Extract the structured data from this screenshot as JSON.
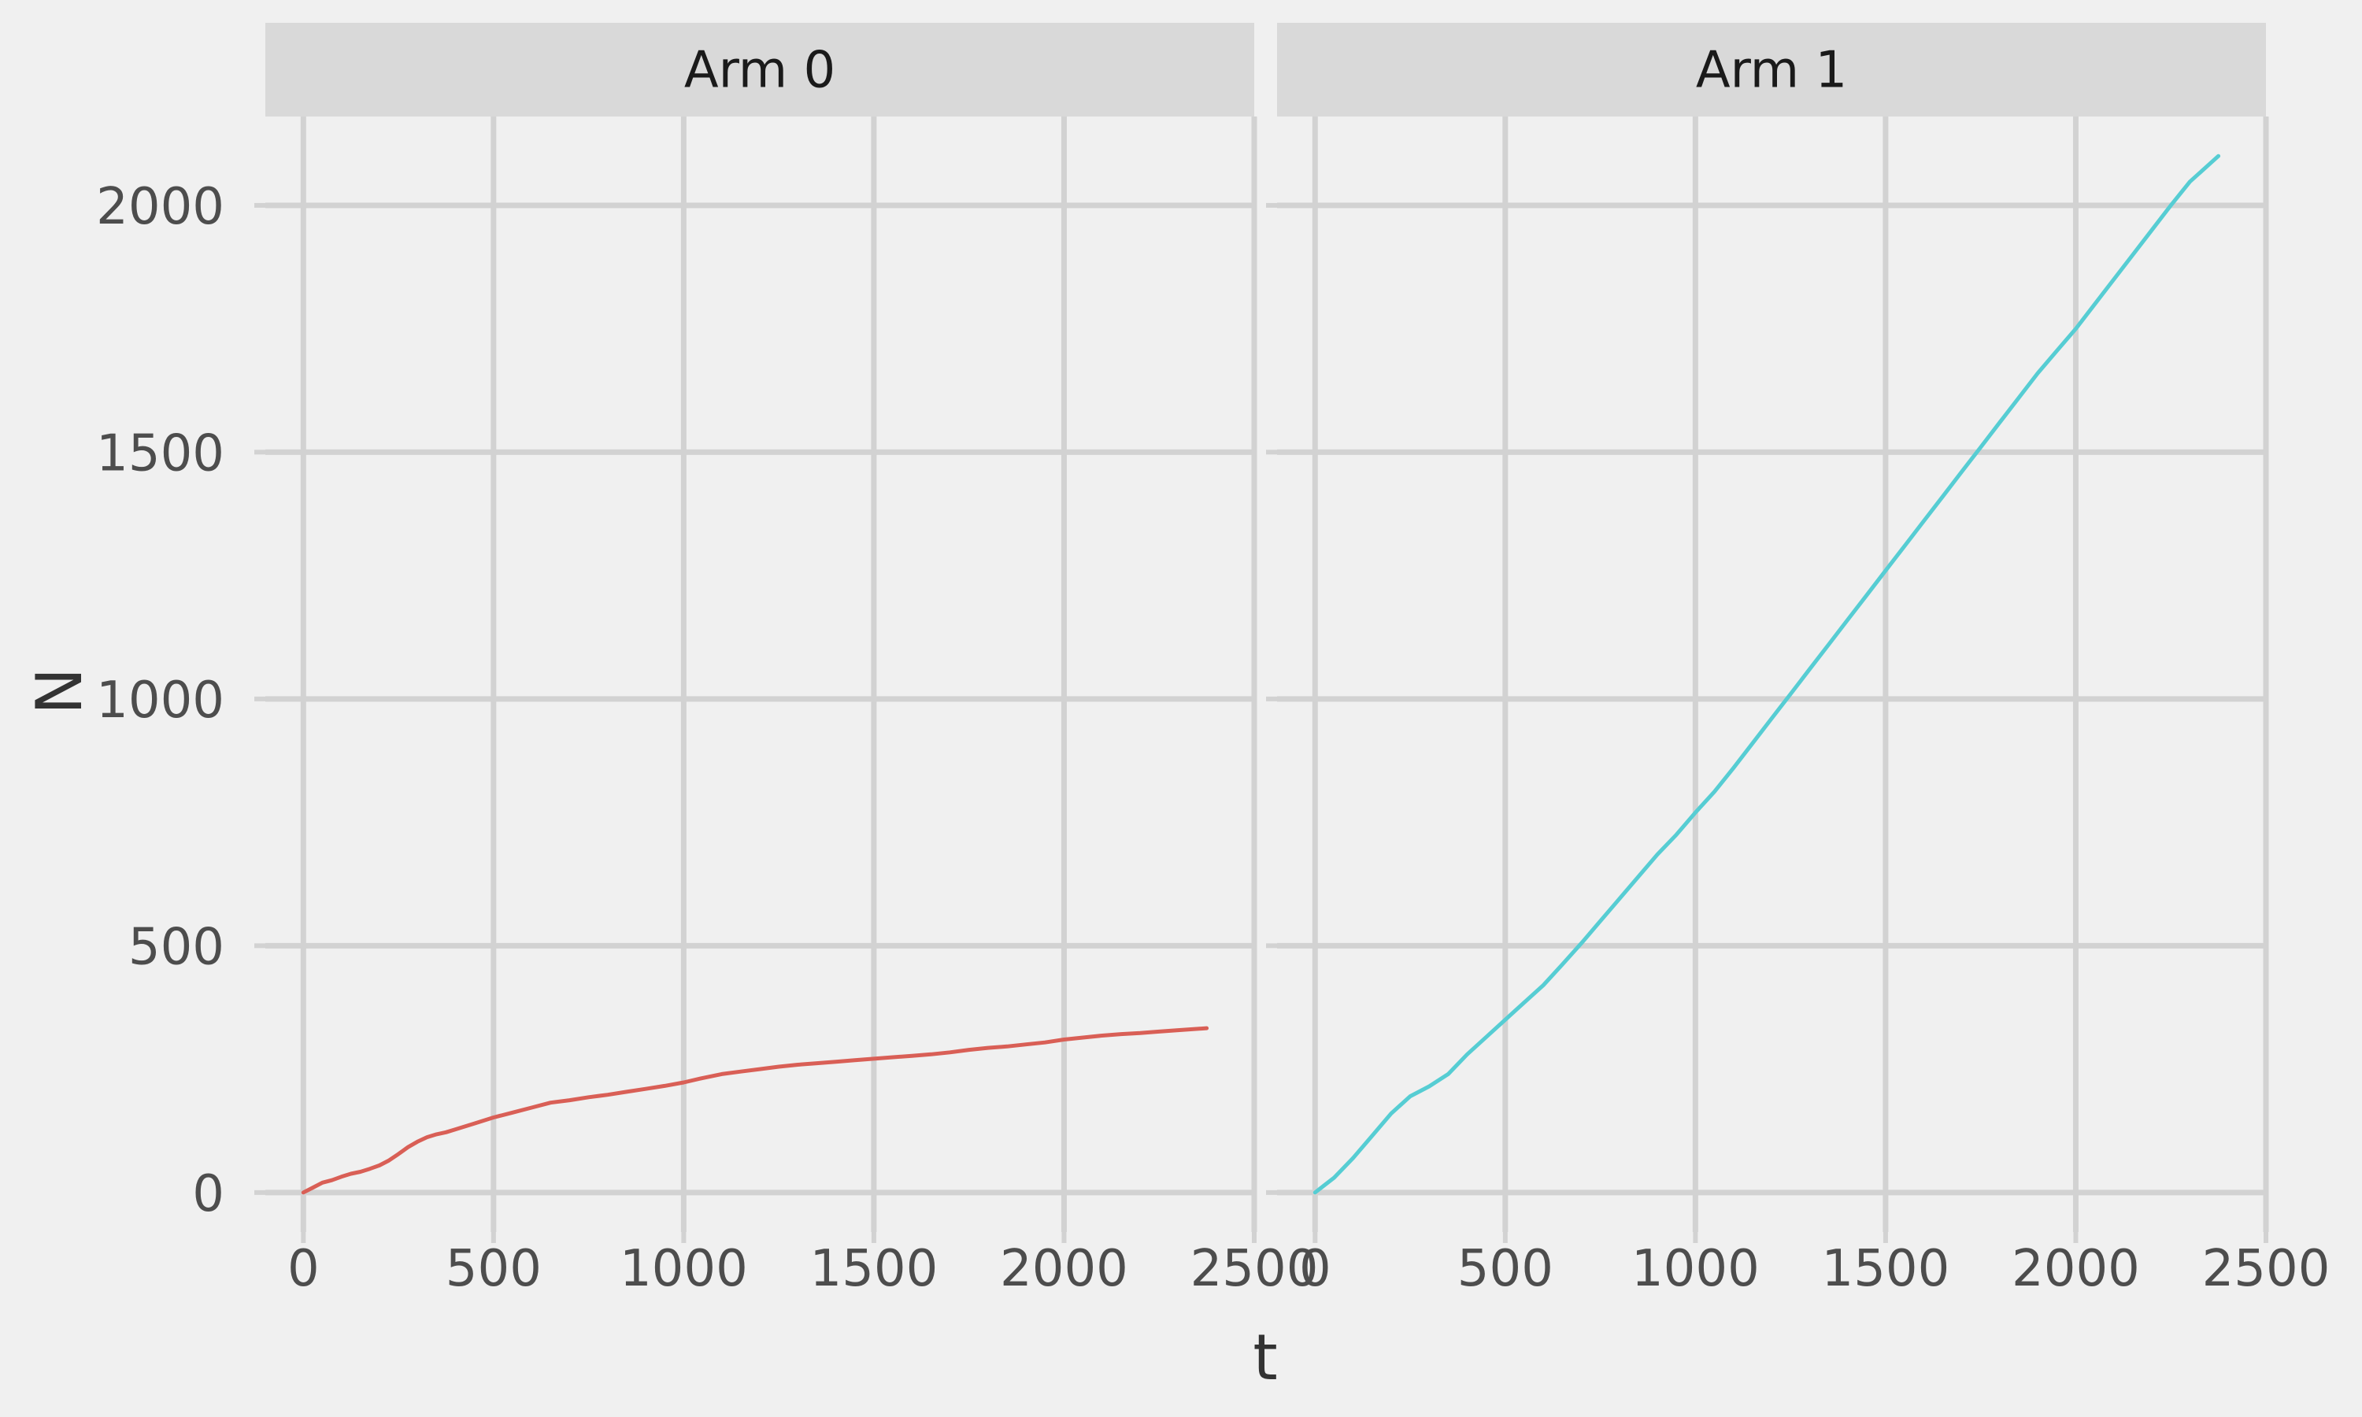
{
  "chart_data": {
    "type": "line",
    "layout": "facet-columns",
    "xlabel": "t",
    "ylabel": "N",
    "xlim": [
      -100,
      2500
    ],
    "ylim": [
      -80,
      2180
    ],
    "xticks": [
      0,
      500,
      1000,
      1500,
      2000,
      2500
    ],
    "yticks": [
      0,
      500,
      1000,
      1500,
      2000
    ],
    "xtick_labels": [
      "0",
      "500",
      "1000",
      "1500",
      "2000",
      "2500"
    ],
    "ytick_labels": [
      "0",
      "500",
      "1000",
      "1500",
      "2000"
    ],
    "grid": true,
    "legend": "none",
    "panels": [
      {
        "label": "Arm 0",
        "color": "#d95f56",
        "x": [
          0,
          25,
          50,
          75,
          100,
          125,
          150,
          175,
          200,
          225,
          250,
          275,
          300,
          325,
          350,
          375,
          400,
          450,
          500,
          550,
          600,
          650,
          700,
          750,
          800,
          850,
          900,
          950,
          1000,
          1050,
          1100,
          1150,
          1200,
          1250,
          1300,
          1350,
          1400,
          1450,
          1500,
          1550,
          1600,
          1650,
          1700,
          1750,
          1800,
          1850,
          1900,
          1950,
          2000,
          2050,
          2100,
          2150,
          2200,
          2250,
          2300,
          2375
        ],
        "y": [
          0,
          10,
          20,
          25,
          32,
          38,
          42,
          48,
          55,
          65,
          78,
          92,
          103,
          112,
          118,
          122,
          128,
          140,
          152,
          162,
          172,
          182,
          187,
          193,
          198,
          204,
          210,
          216,
          223,
          232,
          240,
          245,
          250,
          255,
          259,
          262,
          265,
          268,
          271,
          274,
          277,
          280,
          284,
          289,
          293,
          296,
          300,
          304,
          310,
          314,
          318,
          321,
          323,
          326,
          329,
          333
        ]
      },
      {
        "label": "Arm 1",
        "color": "#56cdd3",
        "x": [
          0,
          25,
          50,
          100,
          150,
          200,
          250,
          300,
          350,
          400,
          450,
          500,
          550,
          600,
          650,
          700,
          750,
          800,
          850,
          900,
          950,
          1000,
          1050,
          1100,
          1150,
          1200,
          1250,
          1300,
          1350,
          1400,
          1450,
          1500,
          1550,
          1600,
          1650,
          1700,
          1750,
          1800,
          1850,
          1900,
          1950,
          2000,
          2050,
          2100,
          2150,
          2200,
          2250,
          2300,
          2375
        ],
        "y": [
          0,
          15,
          30,
          70,
          115,
          160,
          195,
          215,
          240,
          280,
          315,
          350,
          385,
          420,
          462,
          505,
          550,
          595,
          640,
          685,
          725,
          770,
          812,
          860,
          910,
          960,
          1010,
          1060,
          1110,
          1160,
          1210,
          1260,
          1310,
          1360,
          1410,
          1460,
          1510,
          1560,
          1610,
          1660,
          1705,
          1750,
          1800,
          1850,
          1900,
          1950,
          2000,
          2048,
          2100
        ]
      }
    ]
  }
}
